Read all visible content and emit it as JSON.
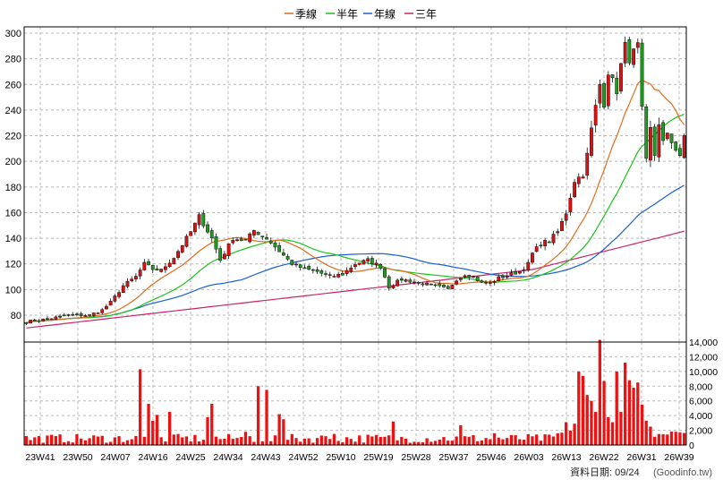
{
  "chart_data": {
    "type": "candlestick+volume",
    "legend": [
      {
        "name": "季線",
        "color": "#e06c1a"
      },
      {
        "name": "半年",
        "color": "#19c419"
      },
      {
        "name": "年線",
        "color": "#1a5fd6"
      },
      {
        "name": "三年",
        "color": "#cc2266"
      }
    ],
    "price_axis": {
      "min": 80,
      "max": 300,
      "ticks": [
        80,
        100,
        120,
        140,
        160,
        180,
        200,
        220,
        240,
        260,
        280,
        300
      ]
    },
    "volume_axis": {
      "min": 0,
      "max": 14000,
      "ticks": [
        "0",
        "2,000",
        "4,000",
        "6,000",
        "8,000",
        "10,000",
        "12,000",
        "14,000"
      ]
    },
    "x_labels": [
      "23W41",
      "23W50",
      "24W07",
      "24W16",
      "24W25",
      "24W34",
      "24W43",
      "24W52",
      "25W10",
      "25W19",
      "25W28",
      "25W37",
      "25W46",
      "26W03",
      "26W13",
      "26W22",
      "26W31",
      "26W39"
    ],
    "weeks": 157,
    "candle_colors": {
      "up": "#dd1111",
      "down": "#229922"
    },
    "close_anchors": [
      [
        0,
        75
      ],
      [
        5,
        77
      ],
      [
        10,
        80
      ],
      [
        15,
        80
      ],
      [
        18,
        84
      ],
      [
        20,
        90
      ],
      [
        23,
        103
      ],
      [
        26,
        110
      ],
      [
        28,
        120
      ],
      [
        30,
        116
      ],
      [
        32,
        115
      ],
      [
        35,
        125
      ],
      [
        37,
        135
      ],
      [
        39,
        145
      ],
      [
        41,
        157
      ],
      [
        44,
        140
      ],
      [
        46,
        123
      ],
      [
        49,
        140
      ],
      [
        52,
        138
      ],
      [
        54,
        146
      ],
      [
        57,
        140
      ],
      [
        60,
        130
      ],
      [
        63,
        120
      ],
      [
        66,
        116
      ],
      [
        69,
        114
      ],
      [
        72,
        110
      ],
      [
        75,
        112
      ],
      [
        78,
        120
      ],
      [
        81,
        123
      ],
      [
        84,
        118
      ],
      [
        86,
        102
      ],
      [
        89,
        108
      ],
      [
        92,
        106
      ],
      [
        95,
        104
      ],
      [
        98,
        102
      ],
      [
        100,
        100
      ],
      [
        102,
        108
      ],
      [
        104,
        112
      ],
      [
        106,
        110
      ],
      [
        108,
        105
      ],
      [
        110,
        105
      ],
      [
        112,
        109
      ],
      [
        114,
        111
      ],
      [
        117,
        114
      ],
      [
        119,
        120
      ],
      [
        120,
        128
      ],
      [
        122,
        136
      ],
      [
        124,
        138
      ],
      [
        126,
        145
      ],
      [
        128,
        160
      ],
      [
        130,
        185
      ],
      [
        132,
        190
      ],
      [
        133,
        205
      ],
      [
        134,
        225
      ],
      [
        136,
        260
      ],
      [
        137,
        245
      ],
      [
        138,
        270
      ],
      [
        140,
        255
      ],
      [
        141,
        275
      ],
      [
        142,
        290
      ],
      [
        143,
        280
      ],
      [
        145,
        290
      ],
      [
        146,
        240
      ],
      [
        147,
        200
      ],
      [
        148,
        225
      ],
      [
        149,
        205
      ],
      [
        150,
        230
      ],
      [
        151,
        215
      ],
      [
        152,
        220
      ],
      [
        153,
        215
      ],
      [
        154,
        210
      ],
      [
        155,
        205
      ],
      [
        156,
        218
      ]
    ],
    "volume_spikes": [
      [
        27,
        10300
      ],
      [
        29,
        5600
      ],
      [
        30,
        3300
      ],
      [
        31,
        4100
      ],
      [
        34,
        4500
      ],
      [
        43,
        3800
      ],
      [
        44,
        5600
      ],
      [
        52,
        1800
      ],
      [
        53,
        1200
      ],
      [
        55,
        8000
      ],
      [
        57,
        7500
      ],
      [
        60,
        4200
      ],
      [
        61,
        3500
      ],
      [
        71,
        1200
      ],
      [
        73,
        1500
      ],
      [
        87,
        3200
      ],
      [
        103,
        2700
      ],
      [
        111,
        1600
      ],
      [
        128,
        3100
      ],
      [
        130,
        2900
      ],
      [
        131,
        10000
      ],
      [
        132,
        9400
      ],
      [
        133,
        6800
      ],
      [
        134,
        6000
      ],
      [
        135,
        4500
      ],
      [
        136,
        14300
      ],
      [
        137,
        8700
      ],
      [
        138,
        3800
      ],
      [
        139,
        3100
      ],
      [
        140,
        10000
      ],
      [
        141,
        4500
      ],
      [
        142,
        11200
      ],
      [
        143,
        8800
      ],
      [
        144,
        7800
      ],
      [
        145,
        8500
      ],
      [
        146,
        5500
      ],
      [
        147,
        3300
      ],
      [
        148,
        2500
      ],
      [
        150,
        1500
      ]
    ]
  },
  "footer": {
    "label": "資料日期: 09/24",
    "source": "(Goodinfo.tw)"
  }
}
